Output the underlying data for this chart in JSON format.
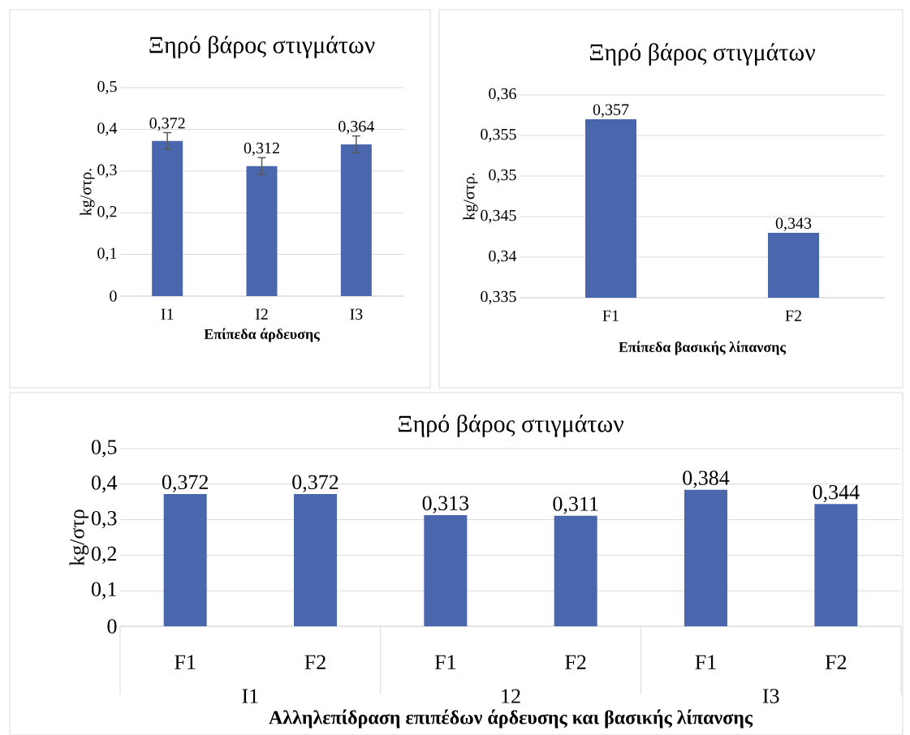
{
  "chart_data": [
    {
      "type": "bar",
      "title": "Ξηρό βάρος στιγμάτων",
      "xlabel": "Επίπεδα άρδευσης",
      "ylabel": "kg/στρ.",
      "categories": [
        "I1",
        "I2",
        "I3"
      ],
      "values": [
        0.372,
        0.312,
        0.364
      ],
      "errors": [
        0.02,
        0.02,
        0.02
      ],
      "value_labels": [
        "0,372",
        "0,312",
        "0,364"
      ],
      "color": "#4a66ac",
      "ylim": [
        0,
        0.5
      ],
      "yticks": [
        {
          "value": 0,
          "label": "0"
        },
        {
          "value": 0.1,
          "label": "0,1"
        },
        {
          "value": 0.2,
          "label": "0,2"
        },
        {
          "value": 0.3,
          "label": "0,3"
        },
        {
          "value": 0.4,
          "label": "0,4"
        },
        {
          "value": 0.5,
          "label": "0,5"
        }
      ],
      "grid": "y"
    },
    {
      "type": "bar",
      "title": "Ξηρό βάρος στιγμάτων",
      "xlabel": "Επίπεδα βασικής λίπανσης",
      "ylabel": "kg/στρ.",
      "categories": [
        "F1",
        "F2"
      ],
      "values": [
        0.357,
        0.343
      ],
      "value_labels": [
        "0,357",
        "0,343"
      ],
      "color": "#4a66ac",
      "ylim": [
        0.335,
        0.36
      ],
      "yticks": [
        {
          "value": 0.335,
          "label": "0,335"
        },
        {
          "value": 0.34,
          "label": "0,34"
        },
        {
          "value": 0.345,
          "label": "0,345"
        },
        {
          "value": 0.35,
          "label": "0,35"
        },
        {
          "value": 0.355,
          "label": "0,355"
        },
        {
          "value": 0.36,
          "label": "0,36"
        }
      ],
      "grid": "y"
    },
    {
      "type": "bar",
      "title": "Ξηρό βάρος στιγμάτων",
      "xlabel": "Αλληλεπίδραση επιπέδων άρδευσης και βασικής λίπανσης",
      "ylabel": "kg/στρ",
      "categories": [
        "F1",
        "F2",
        "F1",
        "F2",
        "F1",
        "F2"
      ],
      "annotations": [
        "I1",
        "12",
        "I3"
      ],
      "values": [
        0.372,
        0.372,
        0.313,
        0.311,
        0.384,
        0.344
      ],
      "value_labels": [
        "0,372",
        "0,372",
        "0,313",
        "0,311",
        "0,384",
        "0,344"
      ],
      "color": "#4a66ac",
      "ylim": [
        0,
        0.5
      ],
      "yticks": [
        {
          "value": 0,
          "label": "0"
        },
        {
          "value": 0.1,
          "label": "0,1"
        },
        {
          "value": 0.2,
          "label": "0,2"
        },
        {
          "value": 0.3,
          "label": "0,3"
        },
        {
          "value": 0.4,
          "label": "0,4"
        },
        {
          "value": 0.5,
          "label": "0,5"
        }
      ],
      "grid": "y"
    }
  ]
}
